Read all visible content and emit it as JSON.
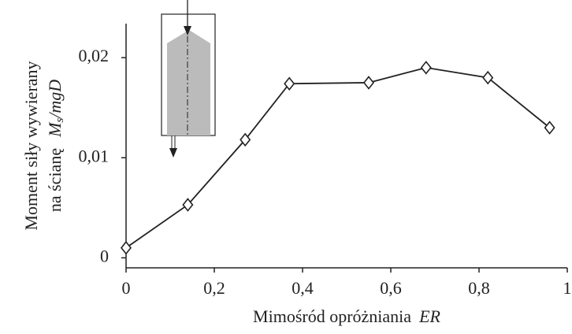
{
  "chart_data": {
    "type": "line",
    "ylabel": [
      "Moment siły  wywierany",
      "na ścianę"
    ],
    "ylabel_symbol": {
      "base": "M",
      "sub": "s",
      "rest": "/mgD"
    },
    "xlabel": "Mimośród opróżniania",
    "xlabel_symbol": "ER",
    "x": [
      0,
      0.14,
      0.27,
      0.37,
      0.55,
      0.68,
      0.82,
      0.96
    ],
    "series": [
      {
        "color": "#222222",
        "values": [
          0.001,
          0.0053,
          0.0118,
          0.0174,
          0.0175,
          0.019,
          0.018,
          0.013
        ]
      }
    ],
    "xlim": [
      0,
      1
    ],
    "ylim": [
      -0.001,
      0.0234
    ],
    "xticks": [
      0,
      {
        "value": 0.2,
        "label": "0,2"
      },
      {
        "value": 0.4,
        "label": "0,4"
      },
      {
        "value": 0.6,
        "label": "0,6"
      },
      {
        "value": 0.8,
        "label": "0,8"
      },
      1
    ],
    "yticks": [
      0,
      {
        "value": 0.01,
        "label": "0,01"
      },
      {
        "value": 0.02,
        "label": "0,02"
      }
    ],
    "marker": "diamond",
    "grid": false
  }
}
